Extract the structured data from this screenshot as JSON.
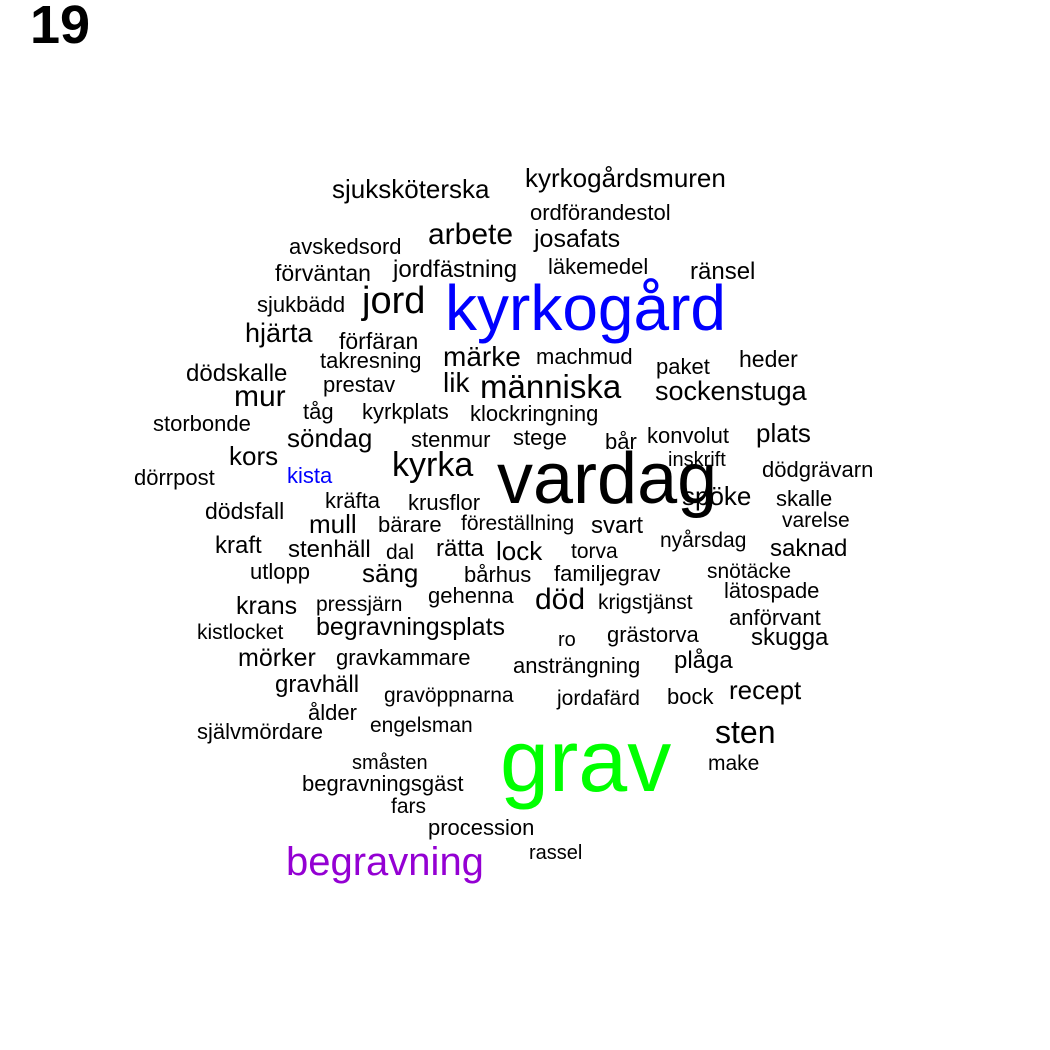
{
  "page_label": "19",
  "colors": {
    "black": "#000000",
    "blue": "#0000ff",
    "green": "#00ff00",
    "purple": "#9400d3"
  },
  "words": [
    {
      "text": "kyrkogårdsmuren",
      "color": "black"
    },
    {
      "text": "sjuksköterska",
      "color": "black"
    },
    {
      "text": "ordförandestol",
      "color": "black"
    },
    {
      "text": "arbete",
      "color": "black"
    },
    {
      "text": "josafats",
      "color": "black"
    },
    {
      "text": "avskedsord",
      "color": "black"
    },
    {
      "text": "förväntan",
      "color": "black"
    },
    {
      "text": "jordfästning",
      "color": "black"
    },
    {
      "text": "läkemedel",
      "color": "black"
    },
    {
      "text": "ränsel",
      "color": "black"
    },
    {
      "text": "sjukbädd",
      "color": "black"
    },
    {
      "text": "jord",
      "color": "black"
    },
    {
      "text": "kyrkogård",
      "color": "blue"
    },
    {
      "text": "hjärta",
      "color": "black"
    },
    {
      "text": "förfäran",
      "color": "black"
    },
    {
      "text": "takresning",
      "color": "black"
    },
    {
      "text": "märke",
      "color": "black"
    },
    {
      "text": "machmud",
      "color": "black"
    },
    {
      "text": "paket",
      "color": "black"
    },
    {
      "text": "heder",
      "color": "black"
    },
    {
      "text": "dödskalle",
      "color": "black"
    },
    {
      "text": "prestav",
      "color": "black"
    },
    {
      "text": "lik",
      "color": "black"
    },
    {
      "text": "människa",
      "color": "black"
    },
    {
      "text": "sockenstuga",
      "color": "black"
    },
    {
      "text": "mur",
      "color": "black"
    },
    {
      "text": "tåg",
      "color": "black"
    },
    {
      "text": "kyrkplats",
      "color": "black"
    },
    {
      "text": "klockringning",
      "color": "black"
    },
    {
      "text": "storbonde",
      "color": "black"
    },
    {
      "text": "söndag",
      "color": "black"
    },
    {
      "text": "stenmur",
      "color": "black"
    },
    {
      "text": "stege",
      "color": "black"
    },
    {
      "text": "bår",
      "color": "black"
    },
    {
      "text": "konvolut",
      "color": "black"
    },
    {
      "text": "plats",
      "color": "black"
    },
    {
      "text": "kors",
      "color": "black"
    },
    {
      "text": "kyrka",
      "color": "black"
    },
    {
      "text": "vardag",
      "color": "black"
    },
    {
      "text": "inskrift",
      "color": "black"
    },
    {
      "text": "dödgrävarn",
      "color": "black"
    },
    {
      "text": "dörrpost",
      "color": "black"
    },
    {
      "text": "kista",
      "color": "blue"
    },
    {
      "text": "kräfta",
      "color": "black"
    },
    {
      "text": "spöke",
      "color": "black"
    },
    {
      "text": "skalle",
      "color": "black"
    },
    {
      "text": "dödsfall",
      "color": "black"
    },
    {
      "text": "krusflor",
      "color": "black"
    },
    {
      "text": "varelse",
      "color": "black"
    },
    {
      "text": "mull",
      "color": "black"
    },
    {
      "text": "bärare",
      "color": "black"
    },
    {
      "text": "föreställning",
      "color": "black"
    },
    {
      "text": "svart",
      "color": "black"
    },
    {
      "text": "kraft",
      "color": "black"
    },
    {
      "text": "stenhäll",
      "color": "black"
    },
    {
      "text": "dal",
      "color": "black"
    },
    {
      "text": "rätta",
      "color": "black"
    },
    {
      "text": "lock",
      "color": "black"
    },
    {
      "text": "torva",
      "color": "black"
    },
    {
      "text": "nyårsdag",
      "color": "black"
    },
    {
      "text": "saknad",
      "color": "black"
    },
    {
      "text": "utlopp",
      "color": "black"
    },
    {
      "text": "säng",
      "color": "black"
    },
    {
      "text": "bårhus",
      "color": "black"
    },
    {
      "text": "familjegrav",
      "color": "black"
    },
    {
      "text": "snötäcke",
      "color": "black"
    },
    {
      "text": "lätospade",
      "color": "black"
    },
    {
      "text": "krans",
      "color": "black"
    },
    {
      "text": "pressjärn",
      "color": "black"
    },
    {
      "text": "gehenna",
      "color": "black"
    },
    {
      "text": "död",
      "color": "black"
    },
    {
      "text": "krigstjänst",
      "color": "black"
    },
    {
      "text": "anförvant",
      "color": "black"
    },
    {
      "text": "kistlocket",
      "color": "black"
    },
    {
      "text": "begravningsplats",
      "color": "black"
    },
    {
      "text": "ro",
      "color": "black"
    },
    {
      "text": "grästorva",
      "color": "black"
    },
    {
      "text": "skugga",
      "color": "black"
    },
    {
      "text": "mörker",
      "color": "black"
    },
    {
      "text": "gravkammare",
      "color": "black"
    },
    {
      "text": "ansträngning",
      "color": "black"
    },
    {
      "text": "plåga",
      "color": "black"
    },
    {
      "text": "gravhäll",
      "color": "black"
    },
    {
      "text": "gravöppnarna",
      "color": "black"
    },
    {
      "text": "jordafärd",
      "color": "black"
    },
    {
      "text": "bock",
      "color": "black"
    },
    {
      "text": "recept",
      "color": "black"
    },
    {
      "text": "ålder",
      "color": "black"
    },
    {
      "text": "självmördare",
      "color": "black"
    },
    {
      "text": "engelsman",
      "color": "black"
    },
    {
      "text": "sten",
      "color": "black"
    },
    {
      "text": "grav",
      "color": "green"
    },
    {
      "text": "småsten",
      "color": "black"
    },
    {
      "text": "make",
      "color": "black"
    },
    {
      "text": "begravningsgäst",
      "color": "black"
    },
    {
      "text": "fars",
      "color": "black"
    },
    {
      "text": "procession",
      "color": "black"
    },
    {
      "text": "rassel",
      "color": "black"
    },
    {
      "text": "begravning",
      "color": "purple"
    }
  ]
}
